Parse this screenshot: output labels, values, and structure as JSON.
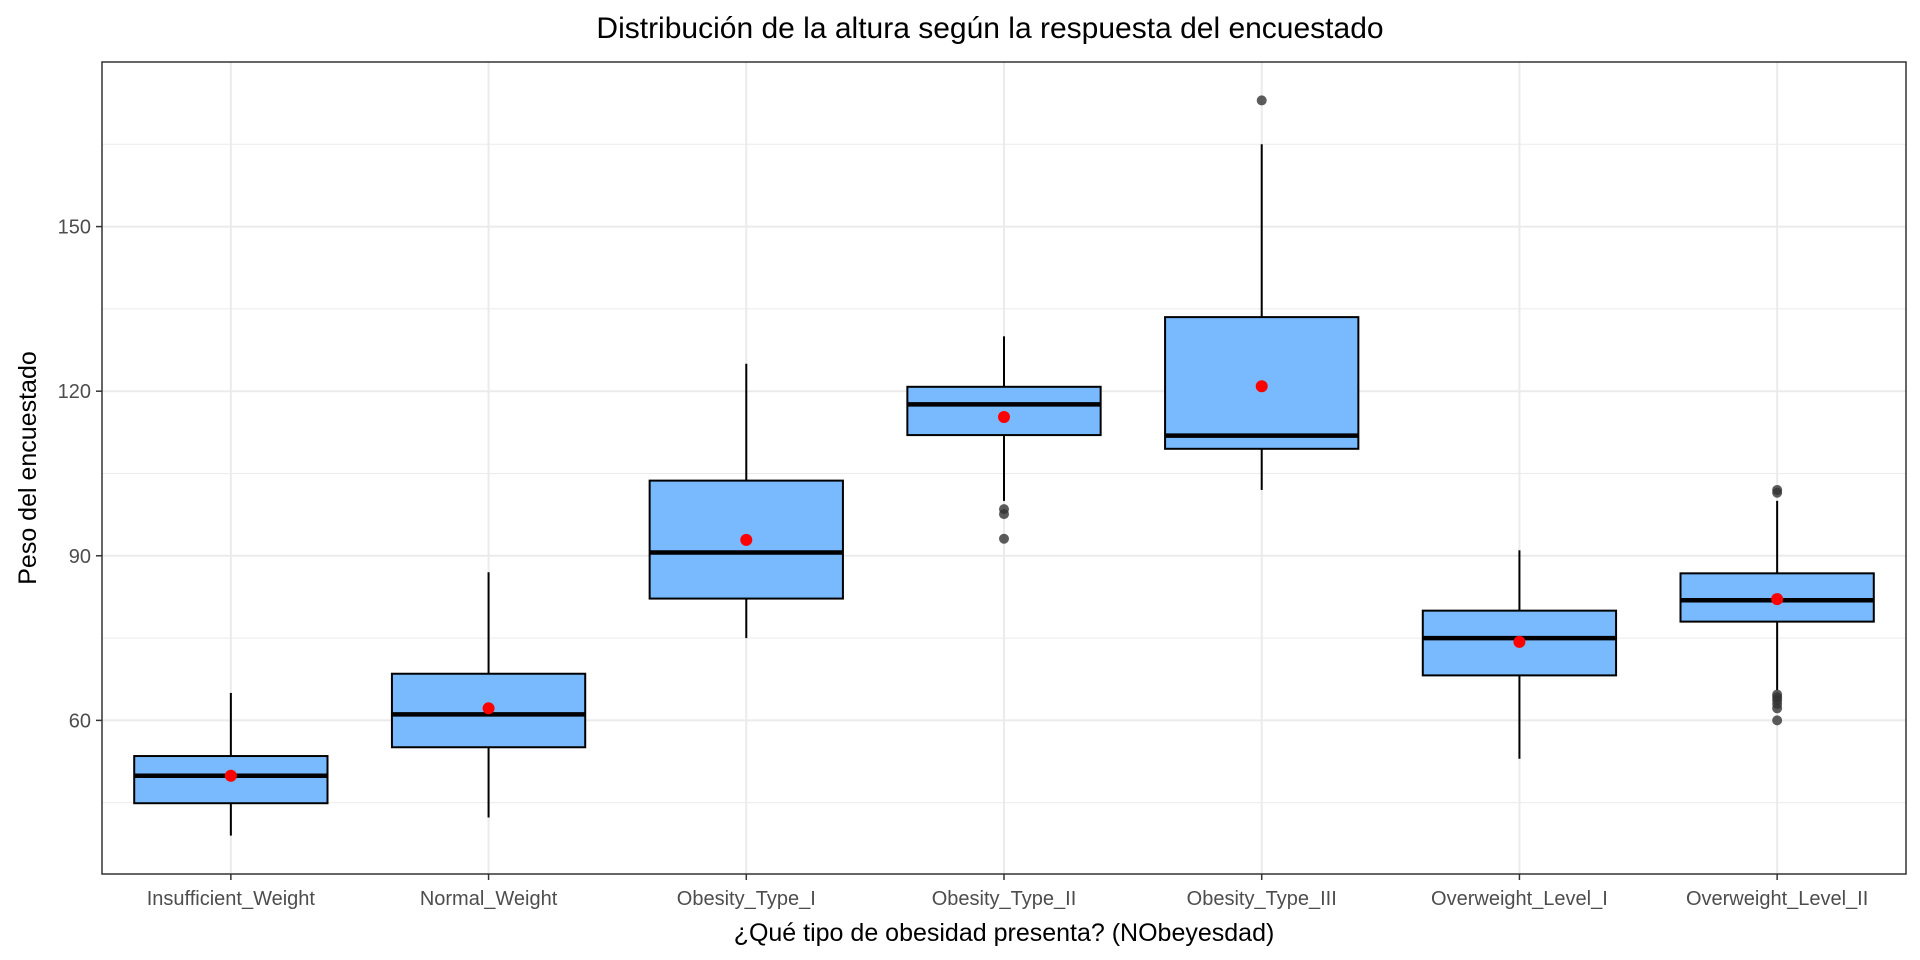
{
  "chart_data": {
    "type": "boxplot",
    "title": "Distribución de la altura según la respuesta del encuestado",
    "xlabel": "¿Qué tipo de obesidad presenta? (NObeyesdad)",
    "ylabel": "Peso del encuestado",
    "ylim": [
      32,
      180
    ],
    "yticks": [
      60,
      90,
      120,
      150
    ],
    "grid": true,
    "colors": {
      "box_fill": "#79b9fd",
      "box_stroke": "#000000",
      "mean_point": "#ff0000",
      "outlier": "#333333",
      "grid": "#ebebeb",
      "panel_border": "#333333"
    },
    "categories": [
      "Insufficient_Weight",
      "Normal_Weight",
      "Obesity_Type_I",
      "Obesity_Type_II",
      "Obesity_Type_III",
      "Overweight_Level_I",
      "Overweight_Level_II"
    ],
    "boxes": [
      {
        "category": "Insufficient_Weight",
        "whisker_low": 39,
        "q1": 44.9,
        "median": 49.9,
        "q3": 53.5,
        "whisker_high": 65,
        "mean": 49.9,
        "outliers": []
      },
      {
        "category": "Normal_Weight",
        "whisker_low": 42.3,
        "q1": 55.1,
        "median": 61.1,
        "q3": 68.5,
        "whisker_high": 87,
        "mean": 62.2,
        "outliers": []
      },
      {
        "category": "Obesity_Type_I",
        "whisker_low": 75,
        "q1": 82.2,
        "median": 90.6,
        "q3": 103.7,
        "whisker_high": 125,
        "mean": 92.9,
        "outliers": []
      },
      {
        "category": "Obesity_Type_II",
        "whisker_low": 100,
        "q1": 112,
        "median": 117.6,
        "q3": 120.8,
        "whisker_high": 130,
        "mean": 115.3,
        "outliers": [
          98.5,
          97.6,
          93.1
        ]
      },
      {
        "category": "Obesity_Type_III",
        "whisker_low": 102,
        "q1": 109.5,
        "median": 111.9,
        "q3": 133.5,
        "whisker_high": 165,
        "mean": 120.9,
        "outliers": [
          173
        ]
      },
      {
        "category": "Overweight_Level_I",
        "whisker_low": 53,
        "q1": 68.2,
        "median": 75,
        "q3": 80,
        "whisker_high": 91,
        "mean": 74.3,
        "outliers": []
      },
      {
        "category": "Overweight_Level_II",
        "whisker_low": 65.5,
        "q1": 78,
        "median": 81.9,
        "q3": 86.8,
        "whisker_high": 100,
        "mean": 82.1,
        "outliers": [
          102,
          101.5,
          64.7,
          64.2,
          63.7,
          63,
          62.2,
          60
        ]
      }
    ]
  }
}
